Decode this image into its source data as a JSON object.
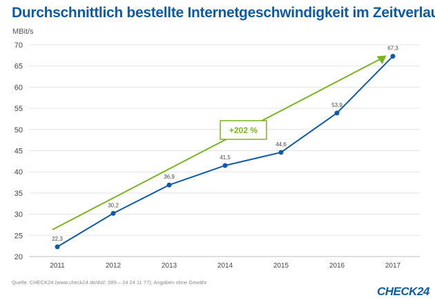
{
  "chart_data": {
    "type": "line",
    "title": "Durchschnittlich bestellte Internetgeschwindigkeit im Zeitverlauf",
    "ylabel": "MBit/s",
    "xlabel": "",
    "categories": [
      "2011",
      "2012",
      "2013",
      "2014",
      "2015",
      "2016",
      "2017"
    ],
    "series": [
      {
        "values": [
          22.3,
          30.2,
          36.9,
          41.5,
          44.6,
          53.9,
          67.3
        ],
        "color": "#0e5aa7"
      }
    ],
    "data_labels": [
      "22,3",
      "30,2",
      "36,9",
      "41,5",
      "44,6",
      "53,9",
      "67,3"
    ],
    "ylim": [
      20,
      70
    ],
    "yticks": [
      20,
      25,
      30,
      35,
      40,
      45,
      50,
      55,
      60,
      65,
      70
    ],
    "grid": "horizontal",
    "annotation": {
      "text": "+202 %",
      "type": "trend-arrow",
      "color": "#7ab51d"
    }
  },
  "footer": {
    "source": "Quelle: CHECK24 (www.check24.de/dsl/; 089 – 24 24 11 77); Angaben ohne Gewähr",
    "logo": "CHECK24"
  }
}
